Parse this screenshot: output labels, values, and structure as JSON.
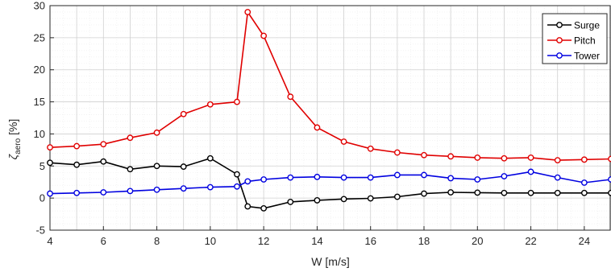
{
  "chart_data": {
    "type": "line",
    "title": "",
    "xlabel": "W [m/s]",
    "ylabel_symbol": "ζ",
    "ylabel_subscript": "aero",
    "ylabel_unit": " [%]",
    "xlim": [
      4,
      25
    ],
    "ylim": [
      -5,
      30
    ],
    "xticks": [
      4,
      6,
      8,
      10,
      12,
      14,
      16,
      18,
      20,
      22,
      24
    ],
    "yticks": [
      -5,
      0,
      5,
      10,
      15,
      20,
      25,
      30
    ],
    "grid": true,
    "minor_grid": true,
    "legend_position": "top-right",
    "series": [
      {
        "name": "Surge",
        "color": "#000000",
        "x": [
          4,
          5,
          6,
          7,
          8,
          9,
          10,
          11,
          11.4,
          12,
          13,
          14,
          15,
          16,
          17,
          18,
          19,
          20,
          21,
          22,
          23,
          24,
          25
        ],
        "y": [
          5.5,
          5.2,
          5.7,
          4.5,
          5.0,
          4.9,
          6.2,
          3.7,
          -1.3,
          -1.6,
          -0.6,
          -0.35,
          -0.15,
          -0.05,
          0.2,
          0.7,
          0.9,
          0.85,
          0.8,
          0.8,
          0.8,
          0.8,
          0.8
        ]
      },
      {
        "name": "Pitch",
        "color": "#e00000",
        "x": [
          4,
          5,
          6,
          7,
          8,
          9,
          10,
          11,
          11.4,
          12,
          13,
          14,
          15,
          16,
          17,
          18,
          19,
          20,
          21,
          22,
          23,
          24,
          25
        ],
        "y": [
          7.9,
          8.1,
          8.4,
          9.4,
          10.2,
          13.1,
          14.6,
          15.0,
          29.0,
          25.3,
          15.8,
          11.0,
          8.8,
          7.7,
          7.1,
          6.7,
          6.5,
          6.3,
          6.2,
          6.3,
          5.9,
          6.0,
          6.1
        ]
      },
      {
        "name": "Tower",
        "color": "#0000e0",
        "x": [
          4,
          5,
          6,
          7,
          8,
          9,
          10,
          11,
          11.4,
          12,
          13,
          14,
          15,
          16,
          17,
          18,
          19,
          20,
          21,
          22,
          23,
          24,
          25
        ],
        "y": [
          0.7,
          0.8,
          0.9,
          1.1,
          1.3,
          1.5,
          1.7,
          1.8,
          2.6,
          2.9,
          3.2,
          3.3,
          3.2,
          3.2,
          3.6,
          3.6,
          3.1,
          2.9,
          3.4,
          4.1,
          3.2,
          2.4,
          2.9
        ]
      }
    ]
  }
}
